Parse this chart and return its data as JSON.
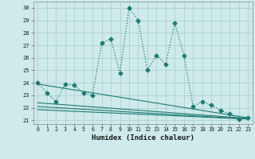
{
  "xlabel": "Humidex (Indice chaleur)",
  "bg_color": "#ceeaea",
  "grid_color": "#afd0d0",
  "line_color": "#1e7a72",
  "xlim": [
    -0.5,
    23.5
  ],
  "ylim": [
    20.7,
    30.5
  ],
  "yticks": [
    21,
    22,
    23,
    24,
    25,
    26,
    27,
    28,
    29,
    30
  ],
  "xticks": [
    0,
    1,
    2,
    3,
    4,
    5,
    6,
    7,
    8,
    9,
    10,
    11,
    12,
    13,
    14,
    15,
    16,
    17,
    18,
    19,
    20,
    21,
    22,
    23
  ],
  "main_x": [
    0,
    1,
    2,
    3,
    4,
    5,
    6,
    7,
    8,
    9,
    10,
    11,
    12,
    13,
    14,
    15,
    16,
    17,
    18,
    19,
    20,
    21,
    22,
    23
  ],
  "main_y": [
    24.0,
    23.2,
    22.5,
    23.9,
    23.8,
    23.2,
    23.0,
    27.2,
    27.5,
    24.8,
    30.0,
    29.0,
    25.0,
    26.2,
    25.5,
    28.8,
    26.2,
    22.1,
    22.5,
    22.2,
    21.8,
    21.5,
    21.1,
    21.2
  ],
  "trend_lines": [
    {
      "x": [
        0,
        23
      ],
      "y": [
        23.9,
        21.2
      ]
    },
    {
      "x": [
        0,
        23
      ],
      "y": [
        22.4,
        21.15
      ]
    },
    {
      "x": [
        0,
        23
      ],
      "y": [
        22.1,
        21.1
      ]
    },
    {
      "x": [
        0,
        23
      ],
      "y": [
        21.85,
        21.1
      ]
    }
  ]
}
